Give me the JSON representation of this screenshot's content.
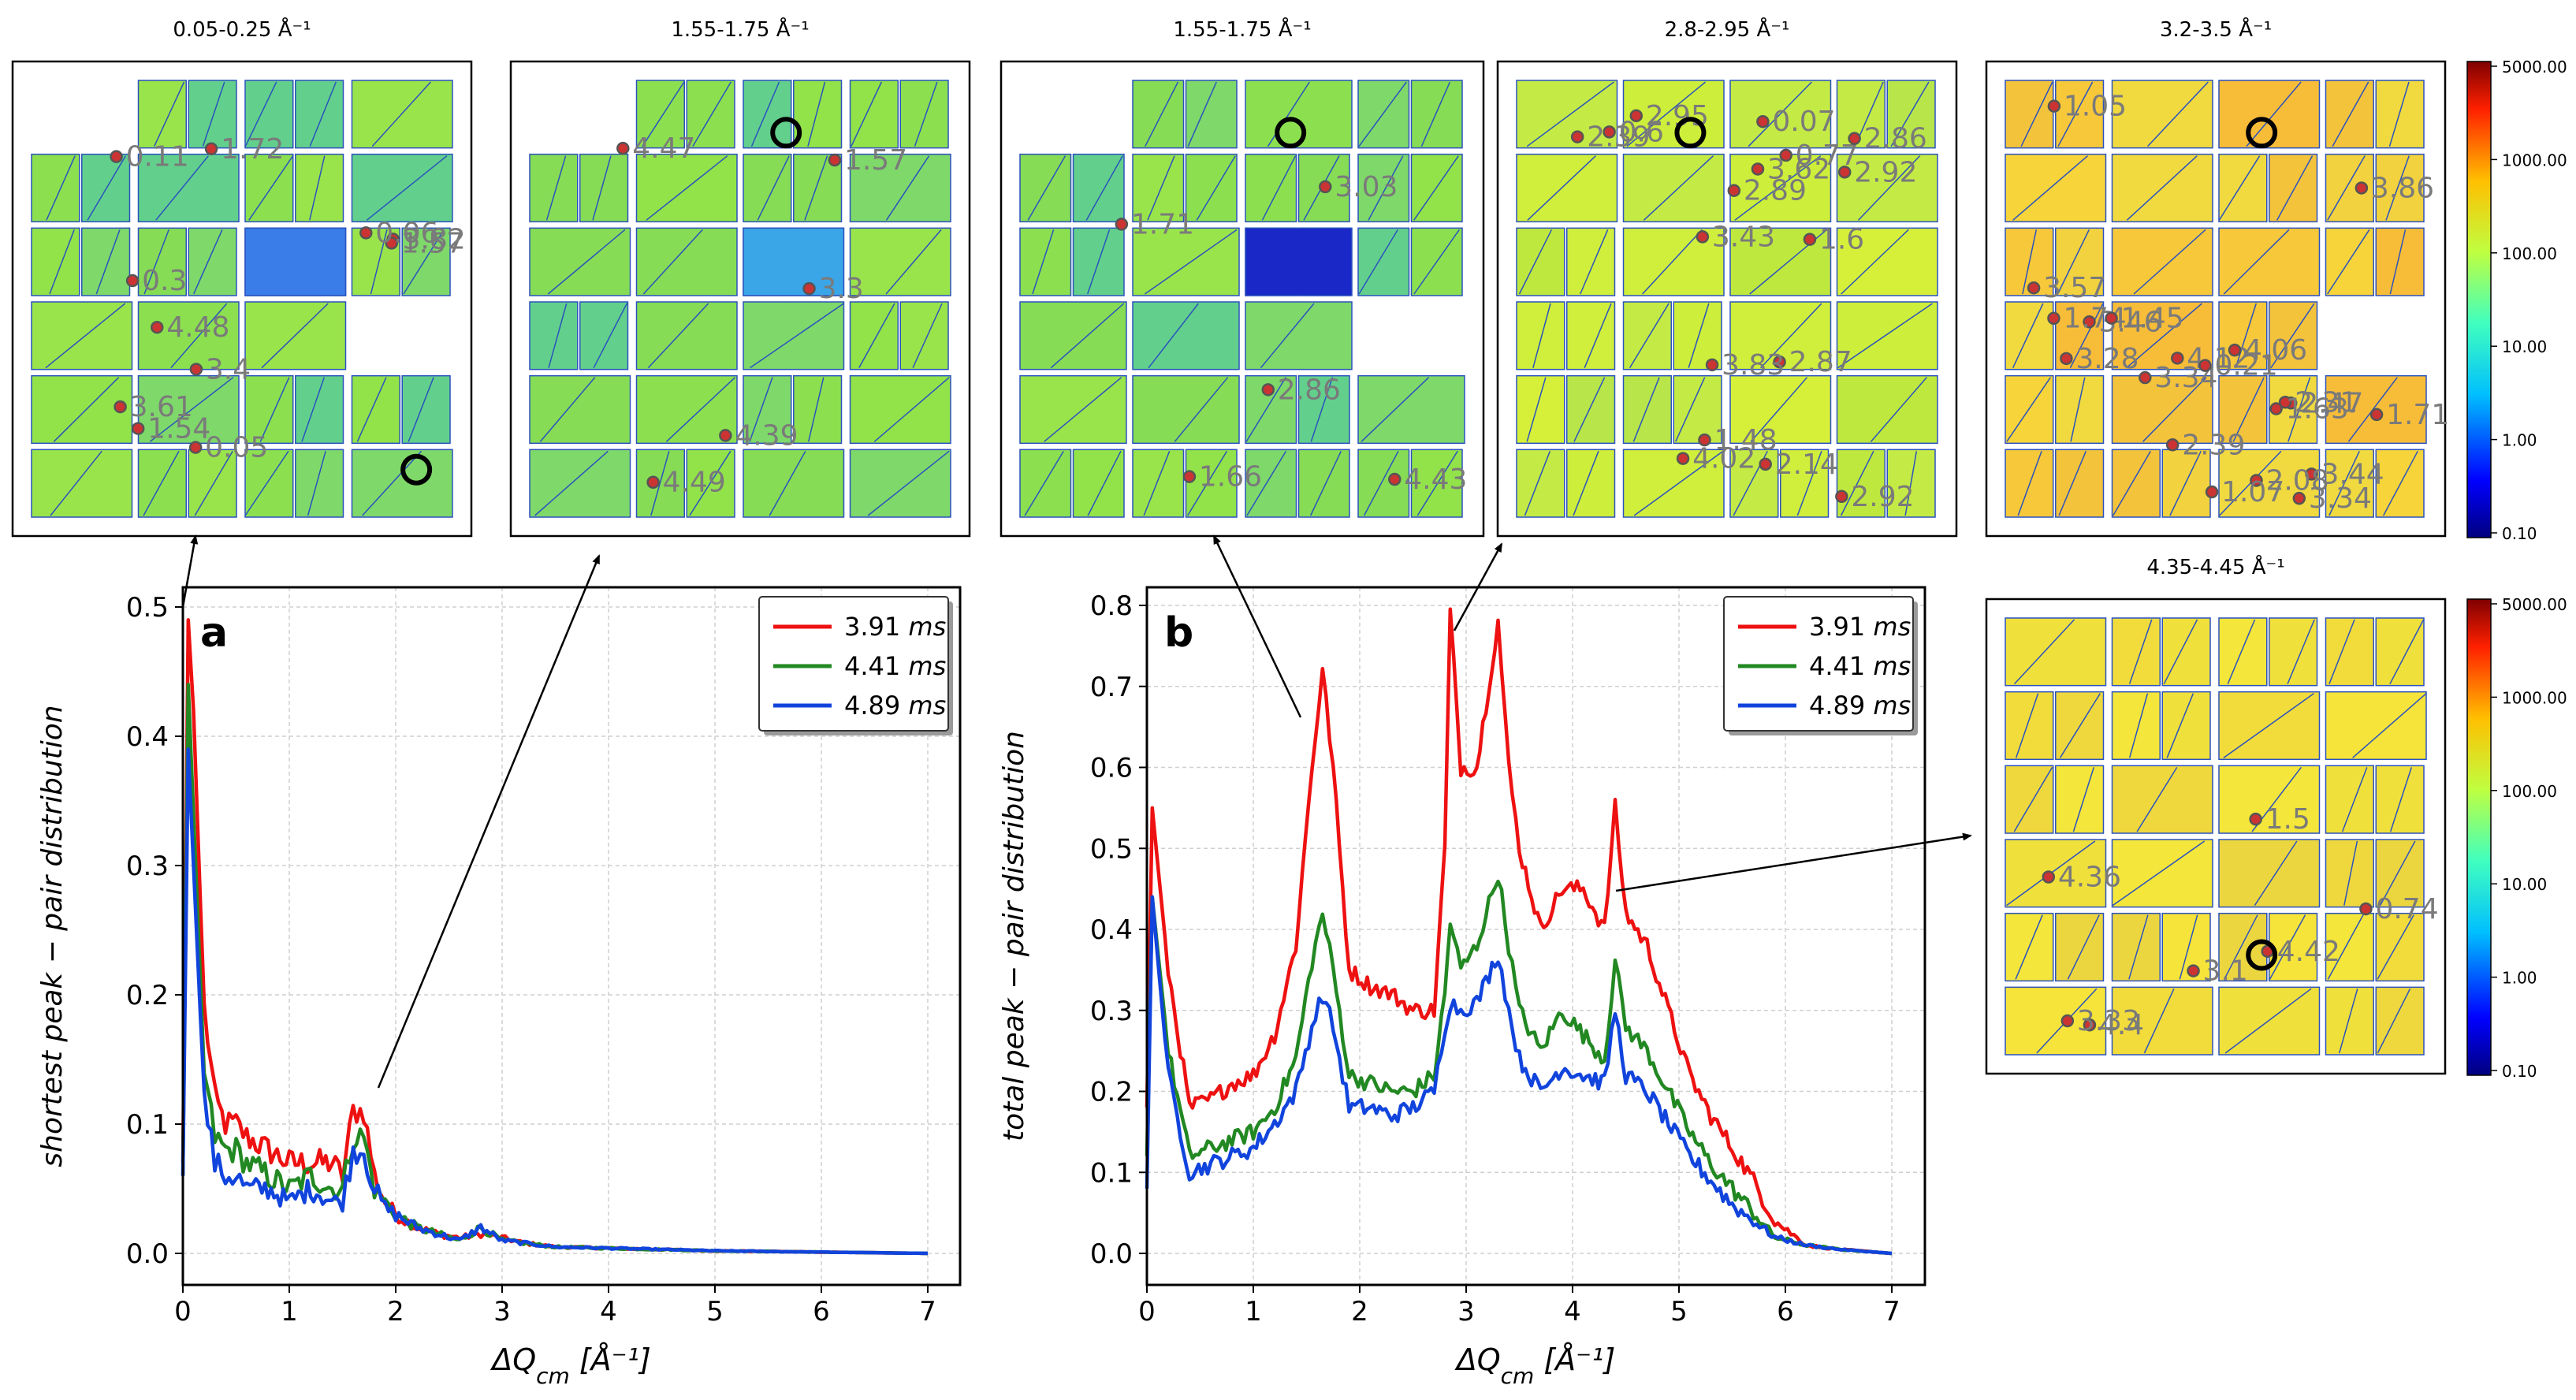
{
  "colors": {
    "series": [
      "#ee1111",
      "#228822",
      "#1144dd"
    ],
    "grid": "#cfcfcf",
    "detector_base": "#8ee04a",
    "peak_ring": "#555555"
  },
  "chart_data": [
    {
      "id": "a",
      "type": "line",
      "panel_label": "a",
      "xlabel": "ΔQ",
      "xlabel_sub": "cm",
      "xlabel_unit": " [Å⁻¹]",
      "ylabel": "shortest peak − pair distribution",
      "xlim": [
        0,
        7
      ],
      "ylim": [
        0,
        0.5
      ],
      "xticks": [
        "0",
        "1",
        "2",
        "3",
        "4",
        "5",
        "6",
        "7"
      ],
      "yticks": [
        "0.0",
        "0.1",
        "0.2",
        "0.3",
        "0.4",
        "0.5"
      ],
      "grid": true,
      "legend_position": "top-right",
      "series": [
        {
          "name": "3.91",
          "unit": "ms",
          "color": "#ee1111",
          "x": [
            0.0,
            0.05,
            0.1,
            0.2,
            0.3,
            0.4,
            0.5,
            0.6,
            0.8,
            1.0,
            1.2,
            1.4,
            1.5,
            1.6,
            1.7,
            1.8,
            1.9,
            2.0,
            2.2,
            2.4,
            2.6,
            2.8,
            3.0,
            3.2,
            3.5,
            4.0,
            4.5,
            5.0,
            6.0,
            7.0
          ],
          "y": [
            0.07,
            0.49,
            0.42,
            0.19,
            0.12,
            0.1,
            0.1,
            0.09,
            0.08,
            0.07,
            0.07,
            0.07,
            0.06,
            0.11,
            0.11,
            0.06,
            0.04,
            0.03,
            0.02,
            0.015,
            0.012,
            0.015,
            0.012,
            0.008,
            0.005,
            0.004,
            0.003,
            0.002,
            0.001,
            0.0
          ]
        },
        {
          "name": "4.41",
          "unit": "ms",
          "color": "#228822",
          "x": [
            0.0,
            0.05,
            0.1,
            0.2,
            0.3,
            0.4,
            0.5,
            0.6,
            0.8,
            1.0,
            1.2,
            1.4,
            1.5,
            1.6,
            1.7,
            1.8,
            1.9,
            2.0,
            2.2,
            2.4,
            2.6,
            2.8,
            3.0,
            3.2,
            3.5,
            4.0,
            4.5,
            5.0,
            6.0,
            7.0
          ],
          "y": [
            0.06,
            0.44,
            0.34,
            0.14,
            0.09,
            0.08,
            0.08,
            0.07,
            0.06,
            0.05,
            0.06,
            0.05,
            0.05,
            0.09,
            0.09,
            0.05,
            0.04,
            0.03,
            0.02,
            0.015,
            0.01,
            0.02,
            0.01,
            0.008,
            0.005,
            0.004,
            0.003,
            0.002,
            0.001,
            0.0
          ]
        },
        {
          "name": "4.89",
          "unit": "ms",
          "color": "#1144dd",
          "x": [
            0.0,
            0.05,
            0.1,
            0.2,
            0.3,
            0.4,
            0.5,
            0.6,
            0.8,
            1.0,
            1.2,
            1.4,
            1.5,
            1.6,
            1.7,
            1.8,
            1.9,
            2.0,
            2.2,
            2.4,
            2.6,
            2.8,
            3.0,
            3.2,
            3.5,
            4.0,
            4.5,
            5.0,
            6.0,
            7.0
          ],
          "y": [
            0.06,
            0.39,
            0.3,
            0.12,
            0.07,
            0.06,
            0.06,
            0.05,
            0.05,
            0.04,
            0.05,
            0.04,
            0.04,
            0.08,
            0.08,
            0.05,
            0.035,
            0.03,
            0.02,
            0.015,
            0.01,
            0.02,
            0.01,
            0.008,
            0.005,
            0.004,
            0.003,
            0.002,
            0.001,
            0.0
          ]
        }
      ]
    },
    {
      "id": "b",
      "type": "line",
      "panel_label": "b",
      "xlabel": "ΔQ",
      "xlabel_sub": "cm",
      "xlabel_unit": " [Å⁻¹]",
      "ylabel": "total peak − pair distribution",
      "xlim": [
        0,
        7
      ],
      "ylim": [
        0,
        0.8
      ],
      "xticks": [
        "0",
        "1",
        "2",
        "3",
        "4",
        "5",
        "6",
        "7"
      ],
      "yticks": [
        "0.0",
        "0.1",
        "0.2",
        "0.3",
        "0.4",
        "0.5",
        "0.6",
        "0.7",
        "0.8"
      ],
      "grid": true,
      "legend_position": "top-right",
      "series": [
        {
          "name": "3.91",
          "unit": "ms",
          "color": "#ee1111",
          "x": [
            0.0,
            0.05,
            0.2,
            0.4,
            0.6,
            0.8,
            1.0,
            1.2,
            1.4,
            1.55,
            1.65,
            1.75,
            1.9,
            2.1,
            2.3,
            2.5,
            2.7,
            2.8,
            2.85,
            2.95,
            3.1,
            3.3,
            3.4,
            3.5,
            3.7,
            3.9,
            4.1,
            4.3,
            4.4,
            4.5,
            4.7,
            4.9,
            5.1,
            5.3,
            5.5,
            5.7,
            5.9,
            6.2,
            6.5,
            7.0
          ],
          "y": [
            0.18,
            0.55,
            0.35,
            0.18,
            0.19,
            0.21,
            0.22,
            0.27,
            0.38,
            0.6,
            0.72,
            0.6,
            0.35,
            0.33,
            0.32,
            0.3,
            0.3,
            0.5,
            0.79,
            0.6,
            0.6,
            0.78,
            0.6,
            0.5,
            0.4,
            0.45,
            0.45,
            0.4,
            0.55,
            0.42,
            0.38,
            0.3,
            0.22,
            0.17,
            0.13,
            0.09,
            0.04,
            0.01,
            0.005,
            0.0
          ]
        },
        {
          "name": "4.41",
          "unit": "ms",
          "color": "#228822",
          "x": [
            0.0,
            0.05,
            0.2,
            0.4,
            0.6,
            0.8,
            1.0,
            1.2,
            1.4,
            1.55,
            1.65,
            1.75,
            1.9,
            2.1,
            2.3,
            2.5,
            2.7,
            2.8,
            2.85,
            2.95,
            3.1,
            3.3,
            3.4,
            3.5,
            3.7,
            3.9,
            4.1,
            4.3,
            4.4,
            4.5,
            4.7,
            4.9,
            5.1,
            5.3,
            5.5,
            5.7,
            5.9,
            6.2,
            6.5,
            7.0
          ],
          "y": [
            0.12,
            0.44,
            0.25,
            0.12,
            0.13,
            0.14,
            0.15,
            0.18,
            0.24,
            0.36,
            0.42,
            0.35,
            0.22,
            0.21,
            0.2,
            0.2,
            0.22,
            0.32,
            0.41,
            0.35,
            0.38,
            0.47,
            0.38,
            0.3,
            0.25,
            0.3,
            0.27,
            0.24,
            0.36,
            0.28,
            0.25,
            0.2,
            0.15,
            0.11,
            0.08,
            0.05,
            0.02,
            0.01,
            0.005,
            0.0
          ]
        },
        {
          "name": "4.89",
          "unit": "ms",
          "color": "#1144dd",
          "x": [
            0.0,
            0.05,
            0.2,
            0.4,
            0.6,
            0.8,
            1.0,
            1.2,
            1.4,
            1.55,
            1.65,
            1.75,
            1.9,
            2.1,
            2.3,
            2.5,
            2.7,
            2.8,
            2.85,
            2.95,
            3.1,
            3.3,
            3.4,
            3.5,
            3.7,
            3.9,
            4.1,
            4.3,
            4.4,
            4.5,
            4.7,
            4.9,
            5.1,
            5.3,
            5.5,
            5.7,
            5.9,
            6.2,
            6.5,
            7.0
          ],
          "y": [
            0.08,
            0.44,
            0.22,
            0.1,
            0.11,
            0.12,
            0.13,
            0.16,
            0.2,
            0.28,
            0.32,
            0.28,
            0.18,
            0.18,
            0.17,
            0.18,
            0.2,
            0.28,
            0.31,
            0.3,
            0.31,
            0.37,
            0.3,
            0.24,
            0.2,
            0.23,
            0.22,
            0.21,
            0.3,
            0.22,
            0.2,
            0.16,
            0.12,
            0.09,
            0.06,
            0.04,
            0.02,
            0.01,
            0.005,
            0.0
          ]
        }
      ]
    }
  ],
  "detectors": [
    {
      "title": "0.05-0.25 Å⁻¹",
      "tint": "#8ee04a",
      "labels": [
        "3.61",
        "4.48",
        "3.82",
        "1.57",
        "3.4",
        "1.54",
        "1.72",
        "0.11",
        "0.05",
        "0.3",
        "0.06"
      ]
    },
    {
      "title": "1.55-1.75 Å⁻¹",
      "tint": "#8ee04a",
      "labels": [
        "1.57",
        "3.3",
        "4.39",
        "4.47",
        "4.49"
      ]
    },
    {
      "title": "1.55-1.75 Å⁻¹",
      "tint": "#8ee04a",
      "labels": [
        "4.43",
        "1.71",
        "3.03",
        "1.66",
        "2.86"
      ]
    },
    {
      "title": "2.8-2.95 Å⁻¹",
      "tint": "#c6ec38",
      "labels": [
        "2.14",
        "0.07",
        "0.6",
        "1.48",
        "0.77",
        "1.6",
        "2.89",
        "2.86",
        "2.92",
        "2.39",
        "2.92",
        "2.95",
        "2.87",
        "3.43",
        "3.62",
        "3.83",
        "4.02"
      ]
    },
    {
      "title": "3.2-3.5 Å⁻¹",
      "tint": "#f4d23a",
      "labels": [
        "3.57",
        "4.12",
        "3.44",
        "4.06",
        "3.28",
        "2.39",
        "3.46",
        "3.34",
        "2.47",
        "2.31",
        "3.34",
        "1.74",
        "3.86",
        "0.21",
        "2.08",
        "1.63",
        "1.71",
        "1.05",
        "1.45",
        "1.07"
      ]
    },
    {
      "title": "4.35-4.45 Å⁻¹",
      "tint": "#f2e23a",
      "labels": [
        "4.42",
        "4.36",
        "4.4",
        "3.1",
        "3.33",
        "0.74",
        "1.5"
      ]
    }
  ],
  "colorbar_ticks": [
    "5000.00",
    "1000.00",
    "100.00",
    "10.00",
    "1.00",
    "0.10"
  ]
}
